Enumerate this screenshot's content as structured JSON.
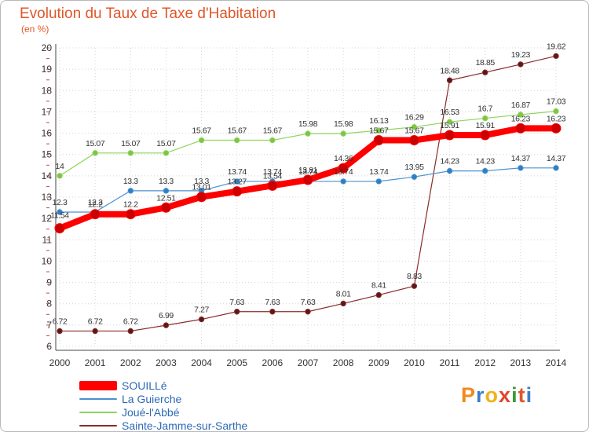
{
  "title": "Evolution du Taux de Taxe d'Habitation",
  "subtitle": "(en %)",
  "brand": "Proxiti",
  "chart_data": {
    "type": "line",
    "title": "Evolution du Taux de Taxe d'Habitation",
    "subtitle": "(en %)",
    "xlabel": "",
    "ylabel": "",
    "x": [
      2000,
      2001,
      2002,
      2003,
      2004,
      2005,
      2006,
      2007,
      2008,
      2009,
      2010,
      2011,
      2012,
      2013,
      2014
    ],
    "y_ticks": [
      6,
      7,
      8,
      9,
      10,
      11,
      12,
      13,
      14,
      15,
      16,
      17,
      18,
      19,
      20
    ],
    "ylim": [
      6,
      20
    ],
    "grid": true,
    "legend_position": "bottom-left",
    "series": [
      {
        "name": "SOUILLé",
        "color": "#ff0000",
        "values": [
          11.54,
          12.2,
          12.2,
          12.51,
          13.01,
          13.27,
          13.54,
          13.81,
          14.36,
          15.67,
          15.67,
          15.91,
          15.91,
          16.23,
          16.23
        ],
        "labels": [
          "11.54",
          "12.2",
          "12.2",
          "12.51",
          "13.01",
          "13.27",
          "13.54",
          "13.81",
          "14.36",
          "15.67",
          "15.67",
          "15.91",
          "15.91",
          "16.23",
          "16.23"
        ]
      },
      {
        "name": "La Guierche",
        "color": "#4a90d0",
        "values": [
          12.3,
          12.3,
          13.3,
          13.3,
          13.3,
          13.74,
          13.74,
          13.74,
          13.74,
          13.74,
          13.95,
          14.23,
          14.23,
          14.37,
          14.37
        ],
        "labels": [
          "12.3",
          "12.3",
          "13.3",
          "13.3",
          "13.3",
          "13.74",
          "13.74",
          "13.74",
          "13.74",
          "13.74",
          "13.95",
          "14.23",
          "14.23",
          "14.37",
          "14.37"
        ]
      },
      {
        "name": "Joué-l'Abbé",
        "color": "#8ed45a",
        "values": [
          14,
          15.07,
          15.07,
          15.07,
          15.67,
          15.67,
          15.67,
          15.98,
          15.98,
          16.13,
          16.29,
          16.53,
          16.7,
          16.87,
          17.03
        ],
        "labels": [
          "14",
          "15.07",
          "15.07",
          "15.07",
          "15.67",
          "15.67",
          "15.67",
          "15.98",
          "15.98",
          "16.13",
          "16.29",
          "16.53",
          "16.7",
          "16.87",
          "17.03"
        ]
      },
      {
        "name": "Sainte-Jamme-sur-Sarthe",
        "color": "#8a2b2b",
        "values": [
          6.72,
          6.72,
          6.72,
          6.99,
          7.27,
          7.63,
          7.63,
          7.63,
          8.01,
          8.41,
          8.83,
          18.48,
          18.85,
          19.23,
          19.62
        ],
        "labels": [
          "6.72",
          "6.72",
          "6.72",
          "6.99",
          "7.27",
          "7.63",
          "7.63",
          "7.63",
          "8.01",
          "8.41",
          "8.83",
          "18.48",
          "18.85",
          "19.23",
          "19.62"
        ]
      }
    ]
  }
}
